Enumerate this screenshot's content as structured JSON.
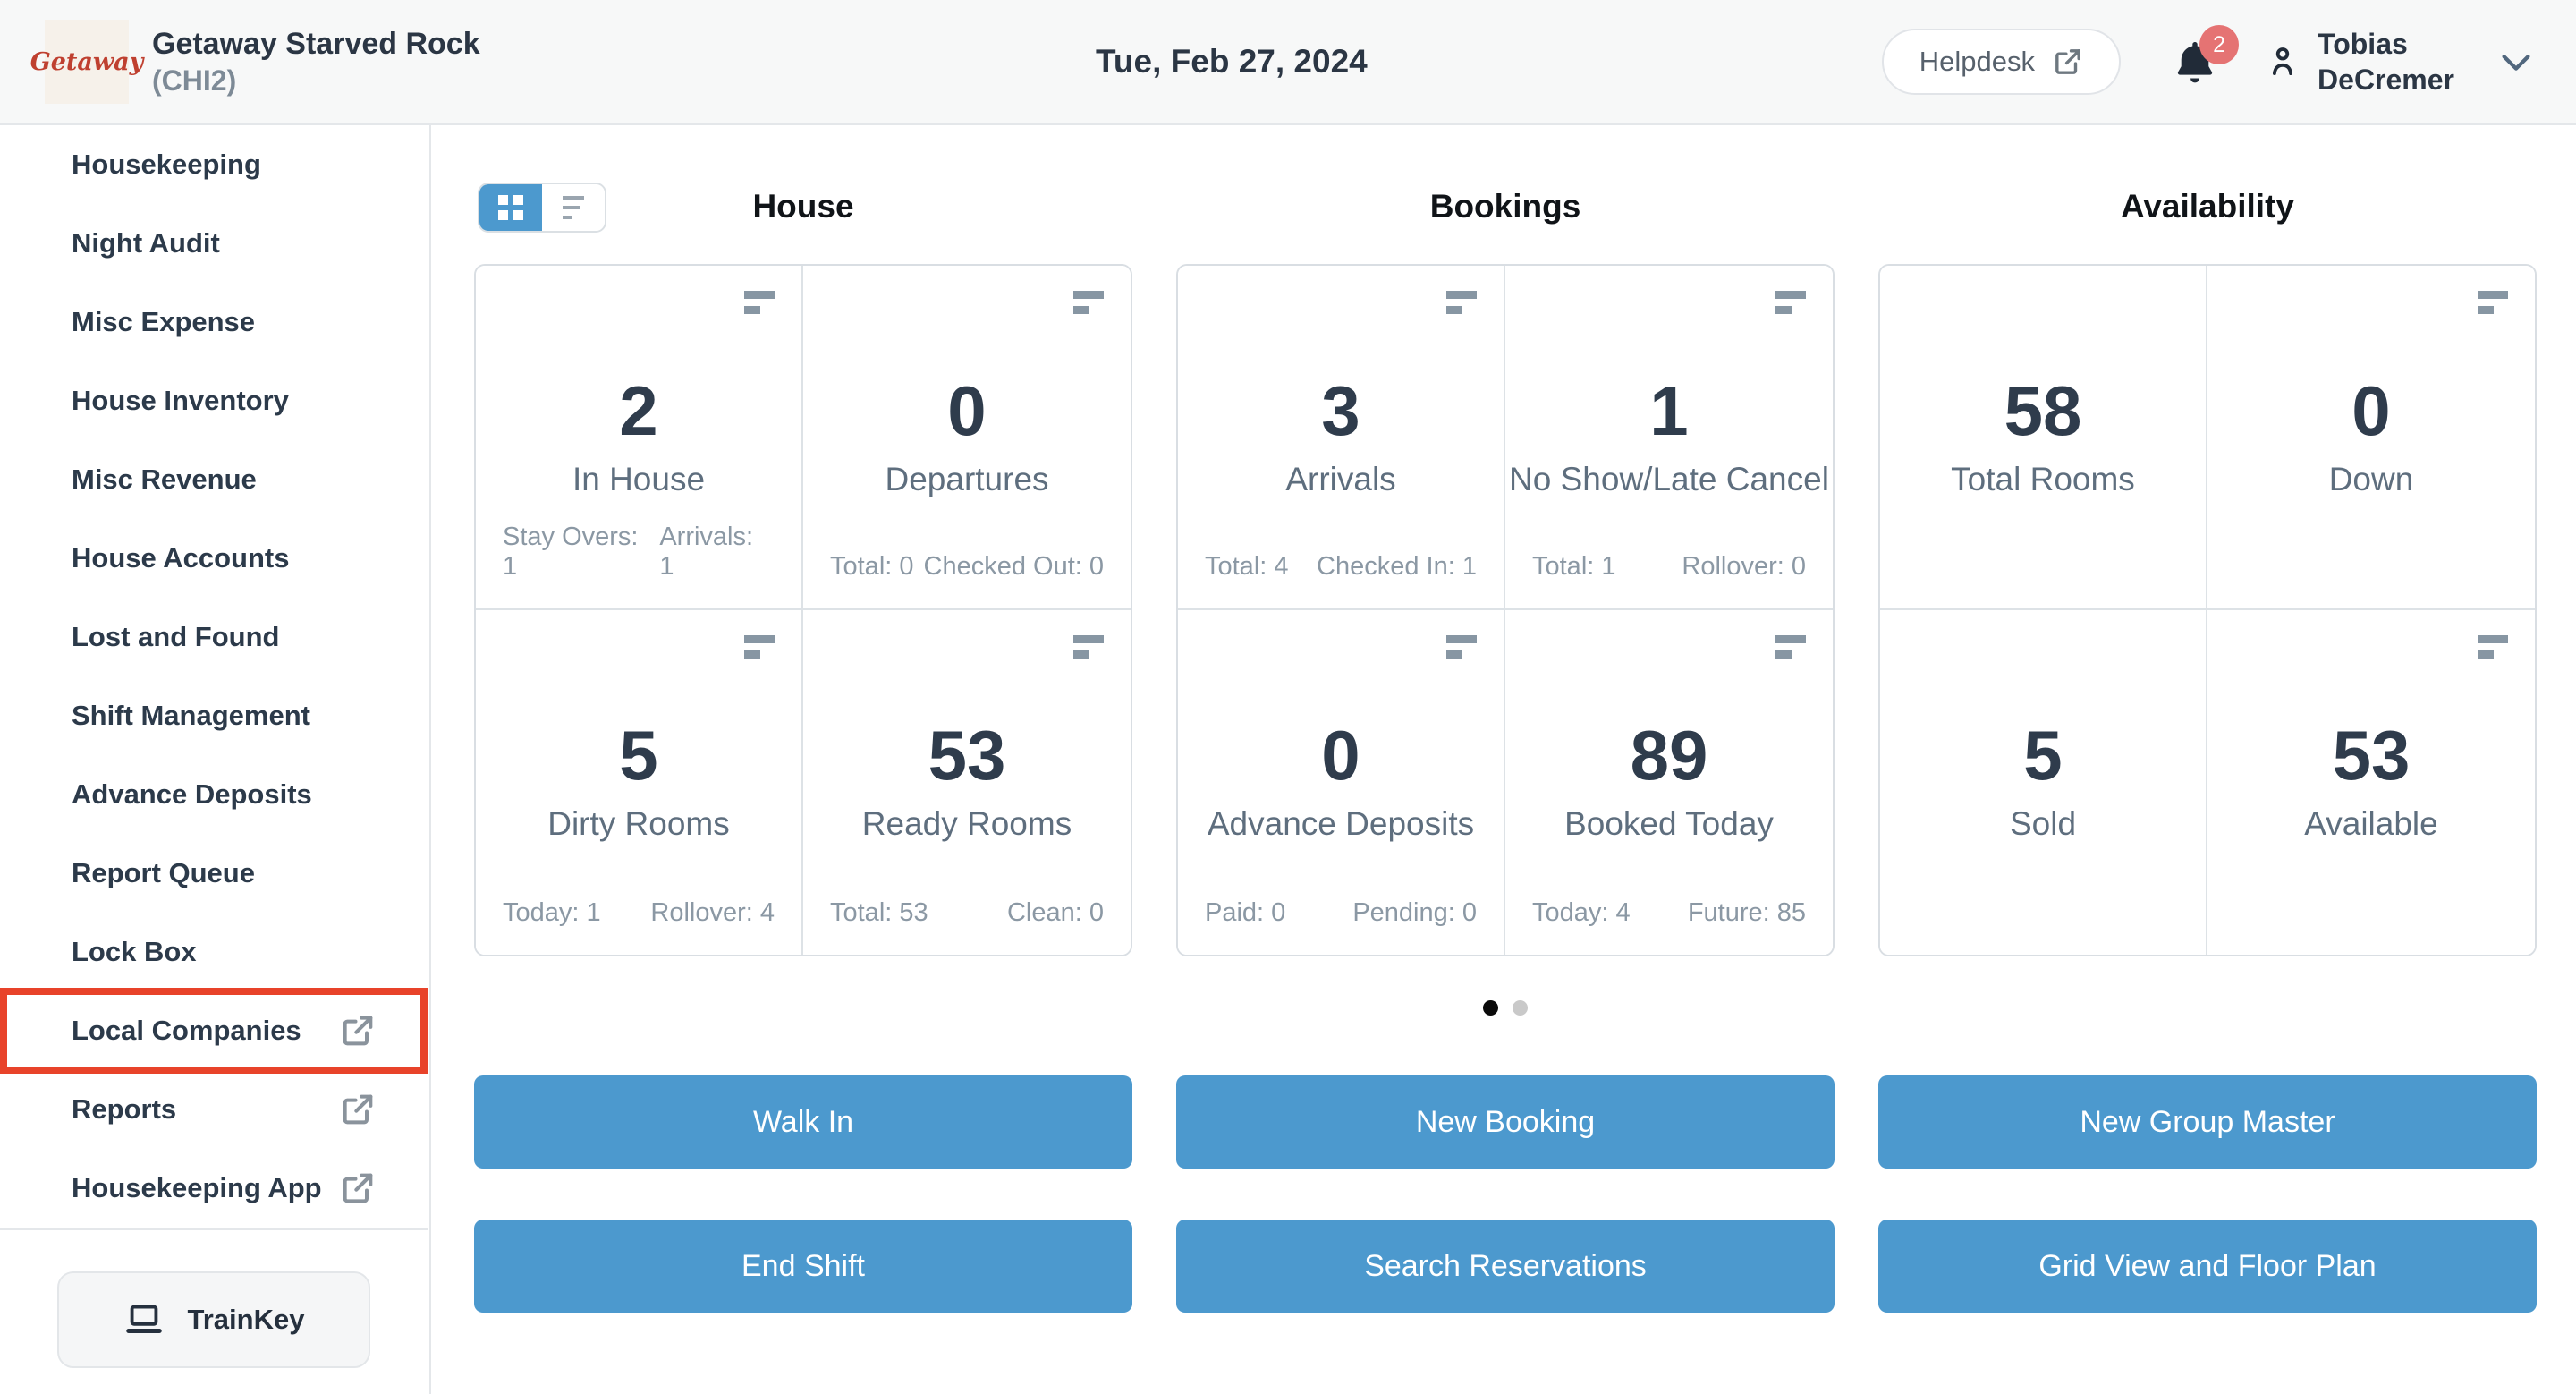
{
  "colors": {
    "accent_blue": "#4c99ce",
    "highlight_red": "#e8432a",
    "badge_red": "#e57373",
    "logo_red": "#bf4030"
  },
  "header": {
    "logo_text": "Getaway",
    "property_name": "Getaway Starved Rock",
    "property_code": "(CHI2)",
    "date": "Tue, Feb 27, 2024",
    "helpdesk_label": "Helpdesk",
    "notification_count": "2",
    "user_name_line1": "Tobias",
    "user_name_line2": "DeCremer"
  },
  "sidebar": {
    "items": [
      {
        "label": "Housekeeping",
        "external": false,
        "highlighted": false
      },
      {
        "label": "Night Audit",
        "external": false,
        "highlighted": false
      },
      {
        "label": "Misc Expense",
        "external": false,
        "highlighted": false
      },
      {
        "label": "House Inventory",
        "external": false,
        "highlighted": false
      },
      {
        "label": "Misc Revenue",
        "external": false,
        "highlighted": false
      },
      {
        "label": "House Accounts",
        "external": false,
        "highlighted": false
      },
      {
        "label": "Lost and Found",
        "external": false,
        "highlighted": false
      },
      {
        "label": "Shift Management",
        "external": false,
        "highlighted": false
      },
      {
        "label": "Advance Deposits",
        "external": false,
        "highlighted": false
      },
      {
        "label": "Report Queue",
        "external": false,
        "highlighted": false
      },
      {
        "label": "Lock Box",
        "external": false,
        "highlighted": false
      },
      {
        "label": "Local Companies",
        "external": true,
        "highlighted": true
      },
      {
        "label": "Reports",
        "external": true,
        "highlighted": false
      },
      {
        "label": "Housekeeping App",
        "external": true,
        "highlighted": false
      }
    ],
    "trainkey_label": "TrainKey"
  },
  "view_toggle": {
    "options": [
      {
        "name": "grid-view",
        "active": true
      },
      {
        "name": "list-view",
        "active": false
      }
    ]
  },
  "sections": [
    {
      "title": "House",
      "cards": [
        {
          "value": "2",
          "label": "In House",
          "menu_icon": true,
          "stats": [
            {
              "label": "Stay Overs",
              "value": "1"
            },
            {
              "label": "Arrivals",
              "value": "1"
            }
          ]
        },
        {
          "value": "0",
          "label": "Departures",
          "menu_icon": true,
          "stats": [
            {
              "label": "Total",
              "value": "0"
            },
            {
              "label": "Checked Out",
              "value": "0"
            }
          ]
        },
        {
          "value": "5",
          "label": "Dirty Rooms",
          "menu_icon": true,
          "stats": [
            {
              "label": "Today",
              "value": "1"
            },
            {
              "label": "Rollover",
              "value": "4"
            }
          ]
        },
        {
          "value": "53",
          "label": "Ready Rooms",
          "menu_icon": true,
          "stats": [
            {
              "label": "Total",
              "value": "53"
            },
            {
              "label": "Clean",
              "value": "0"
            }
          ]
        }
      ]
    },
    {
      "title": "Bookings",
      "cards": [
        {
          "value": "3",
          "label": "Arrivals",
          "menu_icon": true,
          "stats": [
            {
              "label": "Total",
              "value": "4"
            },
            {
              "label": "Checked In",
              "value": "1"
            }
          ]
        },
        {
          "value": "1",
          "label": "No Show/Late Cancel",
          "menu_icon": true,
          "stats": [
            {
              "label": "Total",
              "value": "1"
            },
            {
              "label": "Rollover",
              "value": "0"
            }
          ]
        },
        {
          "value": "0",
          "label": "Advance Deposits",
          "menu_icon": true,
          "stats": [
            {
              "label": "Paid",
              "value": "0"
            },
            {
              "label": "Pending",
              "value": "0"
            }
          ]
        },
        {
          "value": "89",
          "label": "Booked Today",
          "menu_icon": true,
          "stats": [
            {
              "label": "Today",
              "value": "4"
            },
            {
              "label": "Future",
              "value": "85"
            }
          ]
        }
      ]
    },
    {
      "title": "Availability",
      "cards": [
        {
          "value": "58",
          "label": "Total Rooms",
          "menu_icon": false,
          "stats": []
        },
        {
          "value": "0",
          "label": "Down",
          "menu_icon": true,
          "stats": []
        },
        {
          "value": "5",
          "label": "Sold",
          "menu_icon": false,
          "stats": []
        },
        {
          "value": "53",
          "label": "Available",
          "menu_icon": true,
          "stats": []
        }
      ]
    }
  ],
  "pagination": {
    "total": 2,
    "active_index": 0
  },
  "actions": [
    {
      "label": "Walk In"
    },
    {
      "label": "New Booking"
    },
    {
      "label": "New Group Master"
    },
    {
      "label": "End Shift"
    },
    {
      "label": "Search Reservations"
    },
    {
      "label": "Grid View and Floor Plan"
    }
  ]
}
